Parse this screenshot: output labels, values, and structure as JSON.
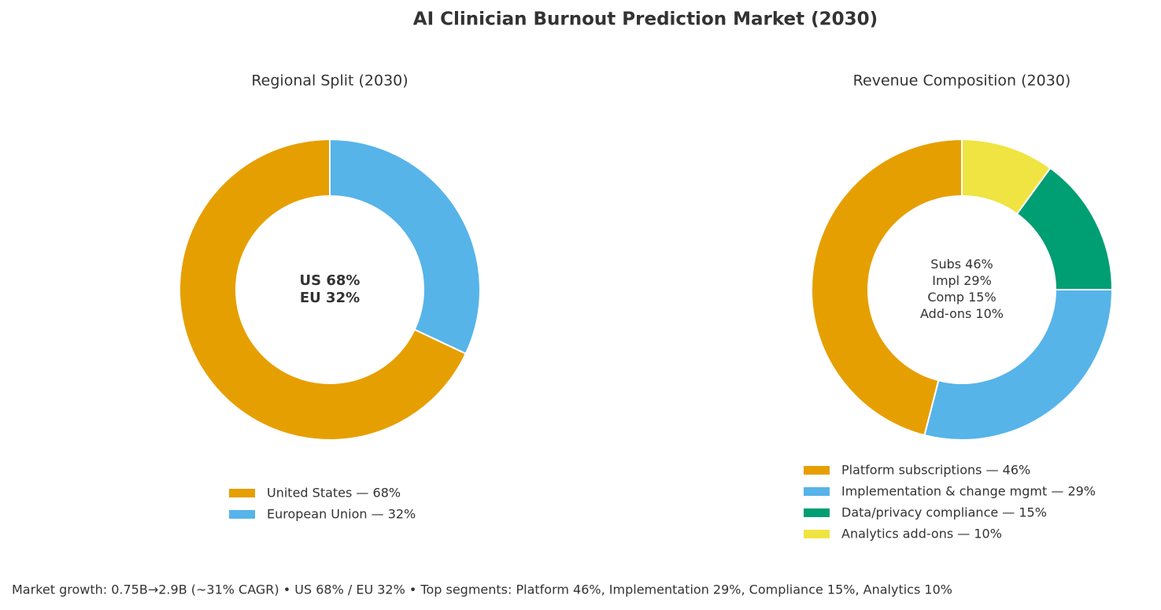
{
  "title": "AI Clinician Burnout Prediction Market (2030)",
  "chart_data": [
    {
      "type": "pie",
      "title": "Regional Split (2030)",
      "categories": [
        "United States — 68%",
        "European Union — 32%"
      ],
      "values": [
        68,
        32
      ],
      "colors": [
        "#E69F00",
        "#56B4E9"
      ],
      "center_text": [
        "US 68%",
        "EU 32%"
      ]
    },
    {
      "type": "pie",
      "title": "Revenue Composition (2030)",
      "categories": [
        "Platform subscriptions — 46%",
        "Implementation & change mgmt — 29%",
        "Data/privacy compliance — 15%",
        "Analytics add-ons — 10%"
      ],
      "values": [
        46,
        29,
        15,
        10
      ],
      "colors": [
        "#E69F00",
        "#56B4E9",
        "#009E73",
        "#F0E442"
      ],
      "center_text": [
        "Subs 46%",
        "Impl 29%",
        "Comp 15%",
        "Add-ons 10%"
      ]
    }
  ],
  "footer": "Market growth: 0.75B→2.9B (~31% CAGR) • US 68% / EU 32% • Top segments: Platform 46%, Implementation 29%, Compliance 15%, Analytics 10%"
}
